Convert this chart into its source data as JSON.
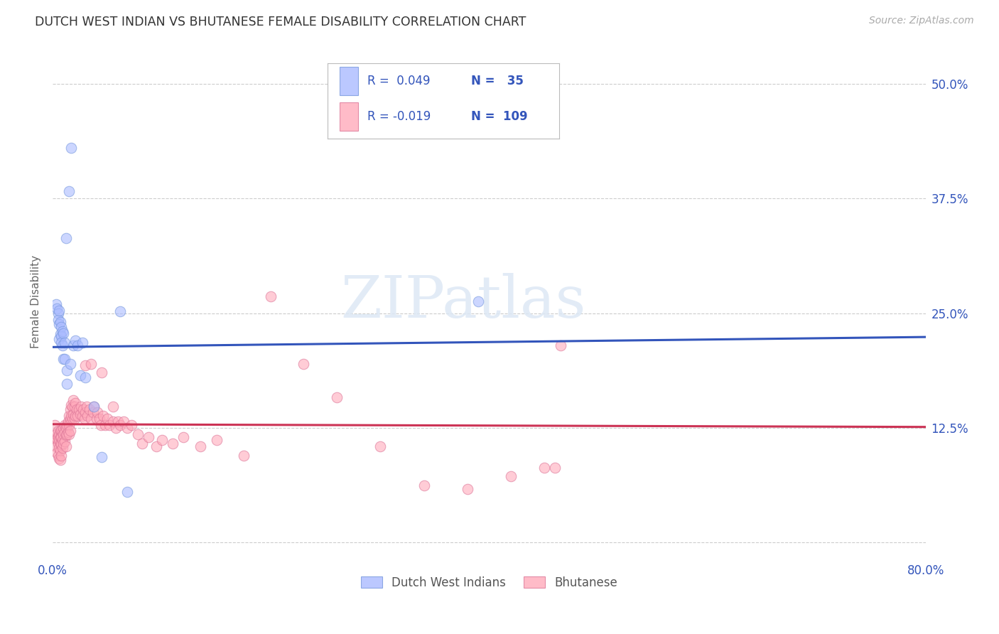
{
  "title": "DUTCH WEST INDIAN VS BHUTANESE FEMALE DISABILITY CORRELATION CHART",
  "source": "Source: ZipAtlas.com",
  "ylabel": "Female Disability",
  "xlim": [
    0.0,
    0.8
  ],
  "ylim": [
    -0.02,
    0.545
  ],
  "grid_color": "#cccccc",
  "background_color": "#ffffff",
  "legend_label_blue": "Dutch West Indians",
  "legend_label_pink": "Bhutanese",
  "blue_color": "#aabbff",
  "pink_color": "#ffaabb",
  "blue_edge_color": "#7799dd",
  "pink_edge_color": "#dd7799",
  "line_blue_color": "#3355bb",
  "line_pink_color": "#cc3355",
  "text_blue_color": "#3355bb",
  "watermark": "ZIPatlas",
  "blue_scatter_x": [
    0.003,
    0.004,
    0.005,
    0.005,
    0.006,
    0.006,
    0.006,
    0.007,
    0.007,
    0.008,
    0.008,
    0.008,
    0.009,
    0.009,
    0.01,
    0.01,
    0.011,
    0.011,
    0.012,
    0.013,
    0.013,
    0.015,
    0.016,
    0.017,
    0.019,
    0.021,
    0.023,
    0.025,
    0.027,
    0.03,
    0.038,
    0.045,
    0.068,
    0.39,
    0.062
  ],
  "blue_scatter_y": [
    0.26,
    0.255,
    0.25,
    0.243,
    0.253,
    0.238,
    0.222,
    0.24,
    0.227,
    0.235,
    0.225,
    0.218,
    0.23,
    0.215,
    0.228,
    0.2,
    0.218,
    0.2,
    0.332,
    0.188,
    0.173,
    0.383,
    0.195,
    0.43,
    0.215,
    0.22,
    0.215,
    0.182,
    0.218,
    0.18,
    0.148,
    0.093,
    0.055,
    0.263,
    0.252
  ],
  "pink_scatter_x": [
    0.002,
    0.002,
    0.003,
    0.003,
    0.004,
    0.004,
    0.005,
    0.005,
    0.005,
    0.005,
    0.006,
    0.006,
    0.006,
    0.006,
    0.007,
    0.007,
    0.007,
    0.007,
    0.007,
    0.008,
    0.008,
    0.008,
    0.008,
    0.009,
    0.009,
    0.009,
    0.01,
    0.01,
    0.01,
    0.011,
    0.011,
    0.011,
    0.012,
    0.012,
    0.012,
    0.013,
    0.013,
    0.014,
    0.014,
    0.015,
    0.015,
    0.015,
    0.016,
    0.016,
    0.016,
    0.017,
    0.017,
    0.018,
    0.018,
    0.019,
    0.019,
    0.02,
    0.02,
    0.021,
    0.021,
    0.022,
    0.023,
    0.024,
    0.025,
    0.026,
    0.027,
    0.028,
    0.029,
    0.03,
    0.031,
    0.032,
    0.034,
    0.035,
    0.037,
    0.038,
    0.04,
    0.041,
    0.043,
    0.044,
    0.046,
    0.048,
    0.05,
    0.052,
    0.055,
    0.058,
    0.06,
    0.062,
    0.065,
    0.068,
    0.072,
    0.078,
    0.082,
    0.088,
    0.095,
    0.1,
    0.11,
    0.12,
    0.135,
    0.15,
    0.175,
    0.2,
    0.23,
    0.26,
    0.3,
    0.34,
    0.38,
    0.42,
    0.45,
    0.46,
    0.465,
    0.03,
    0.035,
    0.045,
    0.055
  ],
  "pink_scatter_y": [
    0.128,
    0.113,
    0.118,
    0.105,
    0.113,
    0.098,
    0.122,
    0.115,
    0.108,
    0.095,
    0.118,
    0.112,
    0.103,
    0.092,
    0.122,
    0.115,
    0.108,
    0.1,
    0.09,
    0.122,
    0.115,
    0.107,
    0.095,
    0.12,
    0.112,
    0.103,
    0.125,
    0.118,
    0.108,
    0.128,
    0.12,
    0.11,
    0.125,
    0.117,
    0.105,
    0.128,
    0.118,
    0.132,
    0.12,
    0.138,
    0.128,
    0.118,
    0.145,
    0.135,
    0.122,
    0.15,
    0.138,
    0.148,
    0.135,
    0.155,
    0.14,
    0.148,
    0.135,
    0.152,
    0.138,
    0.145,
    0.138,
    0.145,
    0.14,
    0.148,
    0.138,
    0.145,
    0.135,
    0.142,
    0.148,
    0.138,
    0.145,
    0.135,
    0.142,
    0.148,
    0.135,
    0.142,
    0.135,
    0.128,
    0.138,
    0.128,
    0.135,
    0.128,
    0.132,
    0.125,
    0.132,
    0.128,
    0.132,
    0.125,
    0.128,
    0.118,
    0.108,
    0.115,
    0.105,
    0.112,
    0.108,
    0.115,
    0.105,
    0.112,
    0.095,
    0.268,
    0.195,
    0.158,
    0.105,
    0.062,
    0.058,
    0.072,
    0.082,
    0.082,
    0.215,
    0.193,
    0.195,
    0.185,
    0.148
  ],
  "blue_line_x": [
    0.0,
    0.8
  ],
  "blue_line_y": [
    0.213,
    0.224
  ],
  "pink_line_x": [
    0.0,
    0.8
  ],
  "pink_line_y": [
    0.129,
    0.126
  ]
}
